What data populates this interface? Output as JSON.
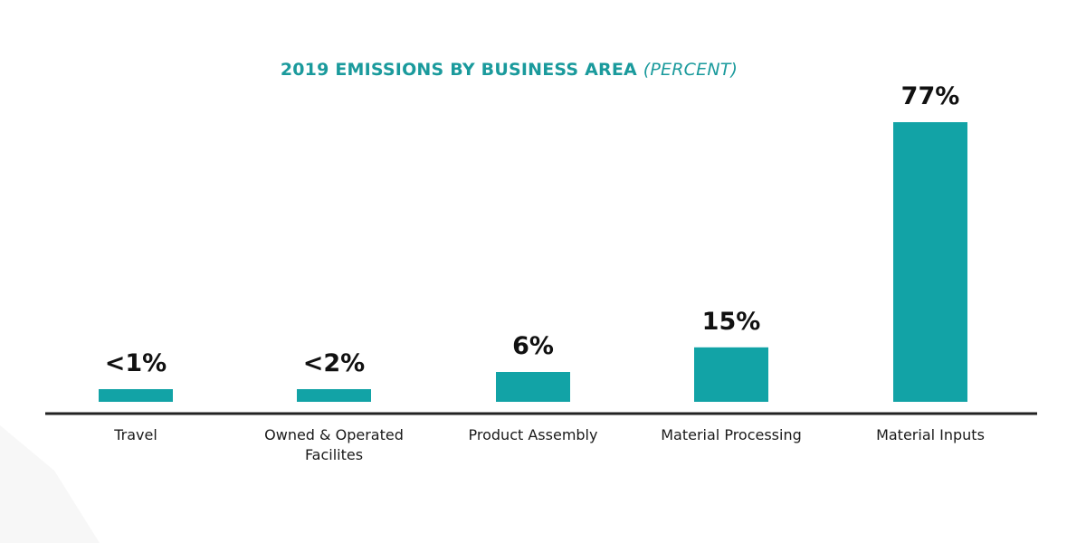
{
  "chart_data": {
    "type": "bar",
    "title": "2019 EMISSIONS BY BUSINESS AREA",
    "subtitle": "(PERCENT)",
    "xlabel": "",
    "ylabel": "",
    "ylim": [
      0,
      80
    ],
    "grid": false,
    "legend": "none",
    "categories": [
      [
        "Travel"
      ],
      [
        "Owned & Operated",
        "Facilites"
      ],
      [
        "Product Assembly"
      ],
      [
        "Material Processing"
      ],
      [
        "Material Inputs"
      ]
    ],
    "values": [
      1,
      2,
      6,
      15,
      77
    ],
    "data_labels": [
      "<1%",
      "<2%",
      "6%",
      "15%",
      "77%"
    ],
    "bar_color": "#12a3a6",
    "axis_color": "#222222",
    "title_color": "#1a9a9c"
  }
}
